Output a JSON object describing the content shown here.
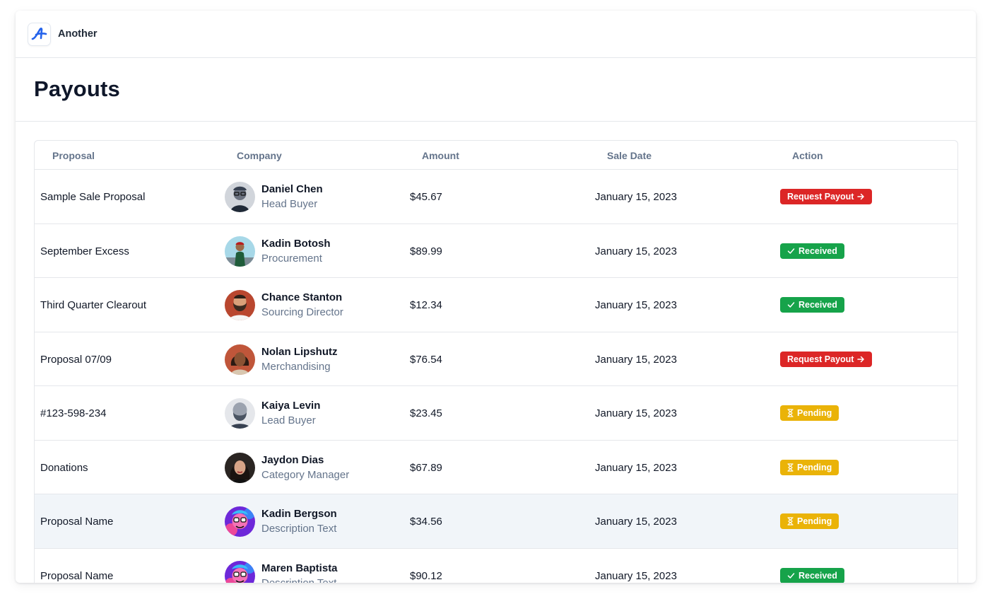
{
  "app": {
    "brand": "Another",
    "logo_letter": "A"
  },
  "page": {
    "title": "Payouts"
  },
  "table": {
    "columns": [
      "Proposal",
      "Company",
      "Amount",
      "Sale Date",
      "Action"
    ],
    "rows": [
      {
        "proposal": "Sample Sale Proposal",
        "name": "Daniel Chen",
        "role": "Head Buyer",
        "amount": "$45.67",
        "date": "January 15, 2023",
        "action": "Request Payout",
        "status": "request",
        "highlight": false,
        "avatar": "bw-glasses"
      },
      {
        "proposal": "September Excess",
        "name": "Kadin Botosh",
        "role": "Procurement",
        "amount": "$89.99",
        "date": "January 15, 2023",
        "action": "Received",
        "status": "received",
        "highlight": false,
        "avatar": "green-outdoor"
      },
      {
        "proposal": "Third Quarter Clearout",
        "name": "Chance Stanton",
        "role": "Sourcing Director",
        "amount": "$12.34",
        "date": "January 15, 2023",
        "action": "Received",
        "status": "received",
        "highlight": false,
        "avatar": "beard-red"
      },
      {
        "proposal": "Proposal 07/09",
        "name": "Nolan Lipshutz",
        "role": "Merchandising",
        "amount": "$76.54",
        "date": "January 15, 2023",
        "action": "Request Payout",
        "status": "request",
        "highlight": false,
        "avatar": "woman-warm"
      },
      {
        "proposal": "#123-598-234",
        "name": "Kaiya Levin",
        "role": "Lead Buyer",
        "amount": "$23.45",
        "date": "January 15, 2023",
        "action": "Pending",
        "status": "pending",
        "highlight": false,
        "avatar": "bw-bald"
      },
      {
        "proposal": "Donations",
        "name": "Jaydon Dias",
        "role": "Category Manager",
        "amount": "$67.89",
        "date": "January 15, 2023",
        "action": "Pending",
        "status": "pending",
        "highlight": false,
        "avatar": "woman-dark"
      },
      {
        "proposal": "Proposal Name",
        "name": "Kadin Bergson",
        "role": "Description Text",
        "amount": "$34.56",
        "date": "January 15, 2023",
        "action": "Pending",
        "status": "pending",
        "highlight": true,
        "avatar": "cartoon"
      },
      {
        "proposal": "Proposal Name",
        "name": "Maren Baptista",
        "role": "Description Text",
        "amount": "$90.12",
        "date": "January 15, 2023",
        "action": "Received",
        "status": "received",
        "highlight": false,
        "avatar": "cartoon"
      }
    ]
  },
  "status_colors": {
    "request": "#dc2626",
    "received": "#16a34a",
    "pending": "#eab308"
  },
  "icons": {
    "request": "arrow-right-icon",
    "received": "check-icon",
    "pending": "hourglass-icon"
  }
}
